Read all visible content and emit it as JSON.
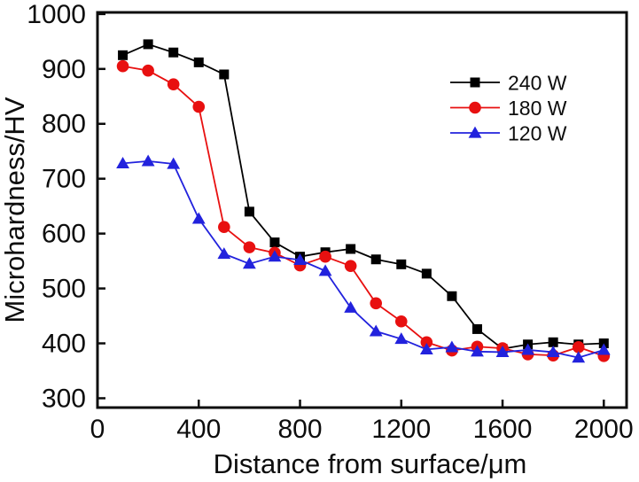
{
  "figure": {
    "background": "#ffffff",
    "frame_color": "#0d0d0d"
  },
  "chart_data": {
    "type": "line",
    "title": "",
    "xlabel": "Distance from surface/μm",
    "ylabel": "Microhardness/HV",
    "xlim": [
      0,
      2090
    ],
    "ylim": [
      283,
      1003
    ],
    "x_ticks": [
      0,
      400,
      800,
      1200,
      1600,
      2000
    ],
    "y_ticks": [
      300,
      400,
      500,
      600,
      700,
      800,
      900,
      1000
    ],
    "grid": false,
    "legend_position": "upper-right-inside",
    "x": [
      100,
      200,
      300,
      400,
      500,
      600,
      700,
      800,
      900,
      1000,
      1100,
      1200,
      1300,
      1400,
      1500,
      1600,
      1700,
      1800,
      1900,
      2000
    ],
    "series": [
      {
        "name": "240 W",
        "marker": "square",
        "color": "#000000",
        "values": [
          925,
          945,
          930,
          912,
          890,
          640,
          584,
          558,
          566,
          572,
          553,
          544,
          527,
          486,
          426,
          390,
          398,
          402,
          398,
          400
        ]
      },
      {
        "name": "180 W",
        "marker": "circle",
        "color": "#e81010",
        "values": [
          905,
          897,
          872,
          831,
          612,
          575,
          565,
          542,
          558,
          541,
          473,
          440,
          402,
          387,
          394,
          391,
          380,
          378,
          393,
          377
        ]
      },
      {
        "name": "120 W",
        "marker": "triangle",
        "color": "#2222dd",
        "values": [
          728,
          732,
          727,
          627,
          563,
          545,
          558,
          552,
          532,
          465,
          422,
          408,
          389,
          393,
          385,
          384,
          388,
          384,
          374,
          388
        ]
      }
    ]
  }
}
